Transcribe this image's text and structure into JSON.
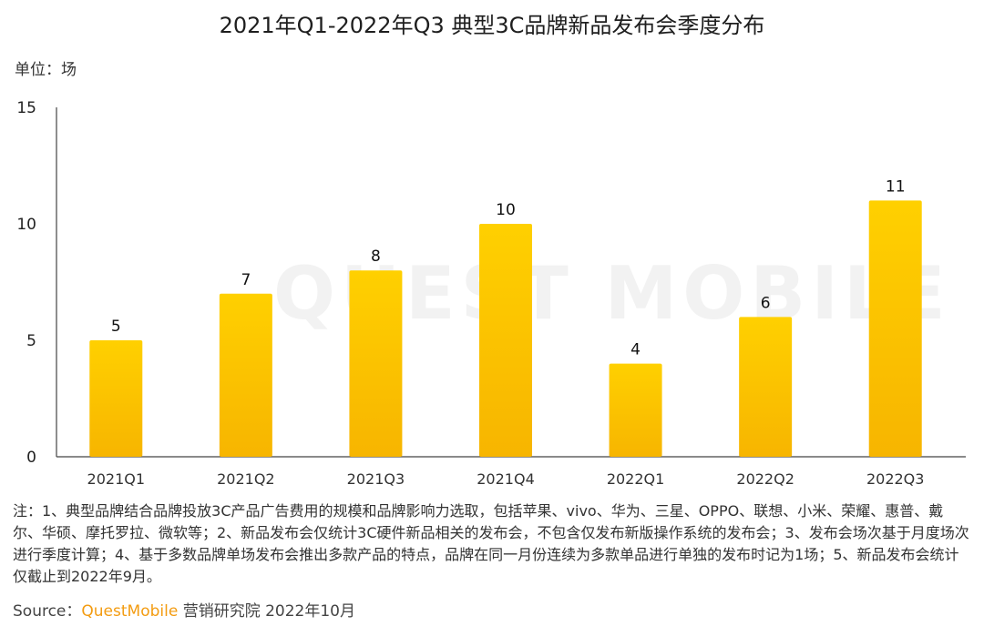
{
  "header": {
    "title": "2021年Q1-2022年Q3 典型3C品牌新品发布会季度分布",
    "unit": "单位：场"
  },
  "watermark": "QUEST MOBILE",
  "chart_data": {
    "type": "bar",
    "categories": [
      "2021Q1",
      "2021Q2",
      "2021Q3",
      "2021Q4",
      "2022Q1",
      "2022Q2",
      "2022Q3"
    ],
    "values": [
      5,
      7,
      8,
      10,
      4,
      6,
      11
    ],
    "yticks": [
      0,
      5,
      10,
      15
    ],
    "ylim": [
      0,
      15
    ],
    "title": "2021年Q1-2022年Q3 典型3C品牌新品发布会季度分布",
    "xlabel": "",
    "ylabel": "",
    "grid": false,
    "colors": {
      "bar_top": "#FFD000",
      "bar_bottom": "#F7B500"
    }
  },
  "footer": {
    "note": "注：1、典型品牌结合品牌投放3C产品广告费用的规模和品牌影响力选取，包括苹果、vivo、华为、三星、OPPO、联想、小米、荣耀、惠普、戴尔、华硕、摩托罗拉、微软等；2、新品发布会仅统计3C硬件新品相关的发布会，不包含仅发布新版操作系统的发布会；3、发布会场次基于月度场次进行季度计算；4、基于多数品牌单场发布会推出多款产品的特点，品牌在同一月份连续为多款单品进行单独的发布时记为1场；5、新品发布会统计仅截止到2022年9月。",
    "source_prefix": "Source：",
    "source_brand": "QuestMobile",
    "source_suffix": " 营销研究院 2022年10月"
  }
}
